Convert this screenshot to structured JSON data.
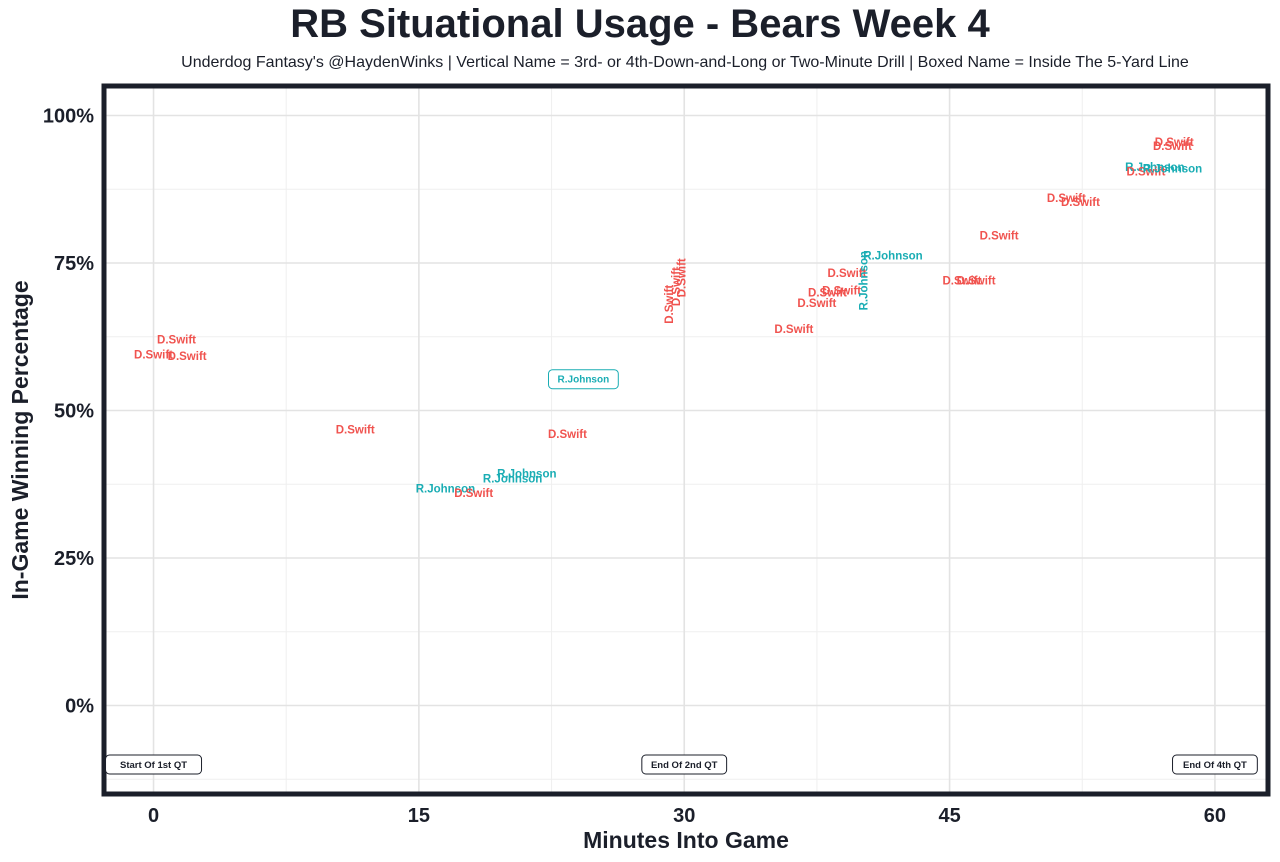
{
  "title": "RB Situational Usage - Bears Week 4",
  "subtitle": "Underdog Fantasy's @HaydenWinks | Vertical Name = 3rd- or 4th-Down-and-Long or Two-Minute Drill | Boxed Name = Inside The 5-Yard Line",
  "colors": {
    "D.Swift": "#f0534f",
    "R.Johnson": "#1aadb4",
    "frame": "#1b1f2a",
    "grid": "#e3e3e3"
  },
  "chart_data": {
    "type": "scatter",
    "title": "RB Situational Usage - Bears Week 4",
    "subtitle": "Underdog Fantasy's @HaydenWinks | Vertical Name = 3rd- or 4th-Down-and-Long or Two-Minute Drill | Boxed Name = Inside The 5-Yard Line",
    "xlabel": "Minutes Into Game",
    "ylabel": "In-Game Winning Percentage",
    "xlim": [
      -2.8,
      63
    ],
    "ylim": [
      -0.15,
      1.05
    ],
    "x_ticks": [
      0,
      15,
      30,
      45,
      60
    ],
    "x_tick_labels": [
      "0",
      "15",
      "30",
      "45",
      "60"
    ],
    "y_ticks": [
      0,
      0.25,
      0.5,
      0.75,
      1.0
    ],
    "y_tick_labels": [
      "0%",
      "25%",
      "50%",
      "75%",
      "100%"
    ],
    "grid": true,
    "annotations": [
      {
        "label": "Start Of 1st QT",
        "x": 0,
        "y": -0.1
      },
      {
        "label": "End Of 2nd QT",
        "x": 30,
        "y": -0.1
      },
      {
        "label": "End Of 4th QT",
        "x": 60,
        "y": -0.1
      }
    ],
    "points": [
      {
        "player": "D.Swift",
        "x": 1.3,
        "y": 0.62,
        "style": "normal"
      },
      {
        "player": "D.Swift",
        "x": 0,
        "y": 0.595,
        "style": "normal"
      },
      {
        "player": "D.Swift",
        "x": 1.9,
        "y": 0.592,
        "style": "normal"
      },
      {
        "player": "D.Swift",
        "x": 11.4,
        "y": 0.468,
        "style": "normal"
      },
      {
        "player": "D.Swift",
        "x": 23.4,
        "y": 0.46,
        "style": "normal"
      },
      {
        "player": "R.Johnson",
        "x": 24.3,
        "y": 0.553,
        "style": "boxed"
      },
      {
        "player": "R.Johnson",
        "x": 16.5,
        "y": 0.368,
        "style": "normal"
      },
      {
        "player": "D.Swift",
        "x": 18.1,
        "y": 0.36,
        "style": "normal"
      },
      {
        "player": "R.Johnson",
        "x": 20.3,
        "y": 0.385,
        "style": "normal"
      },
      {
        "player": "R.Johnson",
        "x": 21.1,
        "y": 0.393,
        "style": "normal"
      },
      {
        "player": "D.Swift",
        "x": 29.2,
        "y": 0.68,
        "style": "vertical"
      },
      {
        "player": "D.Swift",
        "x": 29.6,
        "y": 0.71,
        "style": "vertical"
      },
      {
        "player": "D.Swift",
        "x": 29.9,
        "y": 0.725,
        "style": "vertical"
      },
      {
        "player": "D.Swift",
        "x": 36.2,
        "y": 0.638,
        "style": "normal"
      },
      {
        "player": "D.Swift",
        "x": 37.5,
        "y": 0.682,
        "style": "normal"
      },
      {
        "player": "D.Swift",
        "x": 38.1,
        "y": 0.7,
        "style": "normal"
      },
      {
        "player": "D.Swift",
        "x": 38.9,
        "y": 0.703,
        "style": "normal"
      },
      {
        "player": "D.Swift",
        "x": 39.2,
        "y": 0.733,
        "style": "normal"
      },
      {
        "player": "R.Johnson",
        "x": 41.8,
        "y": 0.763,
        "style": "normal"
      },
      {
        "player": "R.Johnson",
        "x": 40.2,
        "y": 0.72,
        "style": "vertical"
      },
      {
        "player": "D.Swift",
        "x": 45.7,
        "y": 0.72,
        "style": "normal"
      },
      {
        "player": "D.Swift",
        "x": 46.5,
        "y": 0.72,
        "style": "normal"
      },
      {
        "player": "D.Swift",
        "x": 47.8,
        "y": 0.797,
        "style": "normal"
      },
      {
        "player": "D.Swift",
        "x": 51.6,
        "y": 0.86,
        "style": "normal"
      },
      {
        "player": "D.Swift",
        "x": 52.4,
        "y": 0.853,
        "style": "normal"
      },
      {
        "player": "R.Johnson",
        "x": 56.6,
        "y": 0.913,
        "style": "normal"
      },
      {
        "player": "D.Swift",
        "x": 56.1,
        "y": 0.905,
        "style": "normal"
      },
      {
        "player": "R.Johnson",
        "x": 57.6,
        "y": 0.91,
        "style": "normal"
      },
      {
        "player": "D.Swift",
        "x": 57.7,
        "y": 0.955,
        "style": "normal"
      },
      {
        "player": "D.Swift",
        "x": 57.6,
        "y": 0.948,
        "style": "normal"
      }
    ]
  }
}
